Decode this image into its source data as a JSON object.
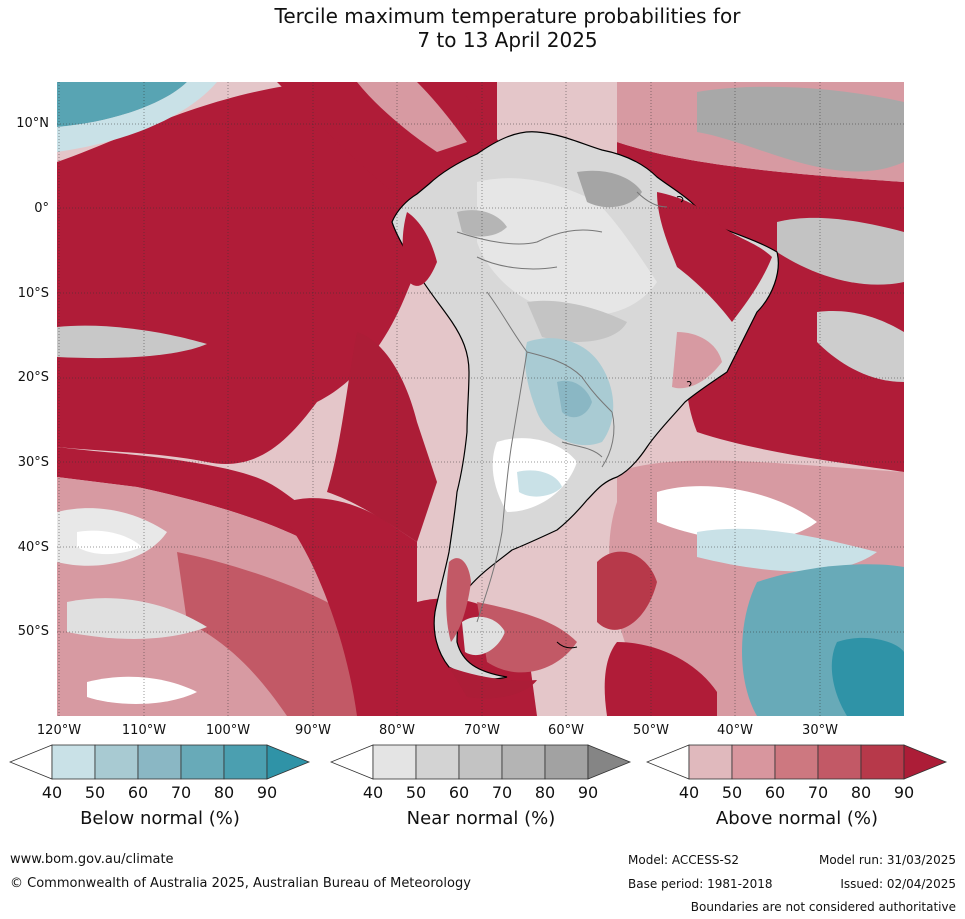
{
  "title": {
    "line1": "Tercile maximum temperature probabilities for",
    "line2": "7 to 13 April 2025"
  },
  "map": {
    "lat_labels": [
      "10°N",
      "0°",
      "10°S",
      "20°S",
      "30°S",
      "40°S",
      "50°S"
    ],
    "lon_labels": [
      "120°W",
      "110°W",
      "100°W",
      "90°W",
      "80°W",
      "70°W",
      "60°W",
      "50°W",
      "40°W",
      "30°W"
    ]
  },
  "legends": [
    {
      "title": "Below normal (%)",
      "ticks": [
        "40",
        "50",
        "60",
        "70",
        "80",
        "90"
      ],
      "colors": [
        "#ffffff",
        "#c9e1e7",
        "#a8cad2",
        "#8ab7c4",
        "#68aab8",
        "#4b9fb0",
        "#2f93a7"
      ]
    },
    {
      "title": "Near normal (%)",
      "ticks": [
        "40",
        "50",
        "60",
        "70",
        "80",
        "90"
      ],
      "colors": [
        "#ffffff",
        "#e4e4e4",
        "#d3d3d3",
        "#c3c3c3",
        "#b4b4b4",
        "#a2a2a2",
        "#858585"
      ]
    },
    {
      "title": "Above normal (%)",
      "ticks": [
        "40",
        "50",
        "60",
        "70",
        "80",
        "90"
      ],
      "colors": [
        "#ffffff",
        "#e0b9bd",
        "#d8969e",
        "#cd7880",
        "#c25966",
        "#b7394a",
        "#ac1d37"
      ]
    }
  ],
  "footer": {
    "website": "www.bom.gov.au/climate",
    "copyright": "© Commonwealth of Australia 2025, Australian Bureau of Meteorology",
    "model": "Model: ACCESS-S2",
    "base_period": "Base period: 1981-2018",
    "model_run": "Model run: 31/03/2025",
    "issued": "Issued: 02/04/2025",
    "disclaimer": "Boundaries are not considered authoritative"
  }
}
